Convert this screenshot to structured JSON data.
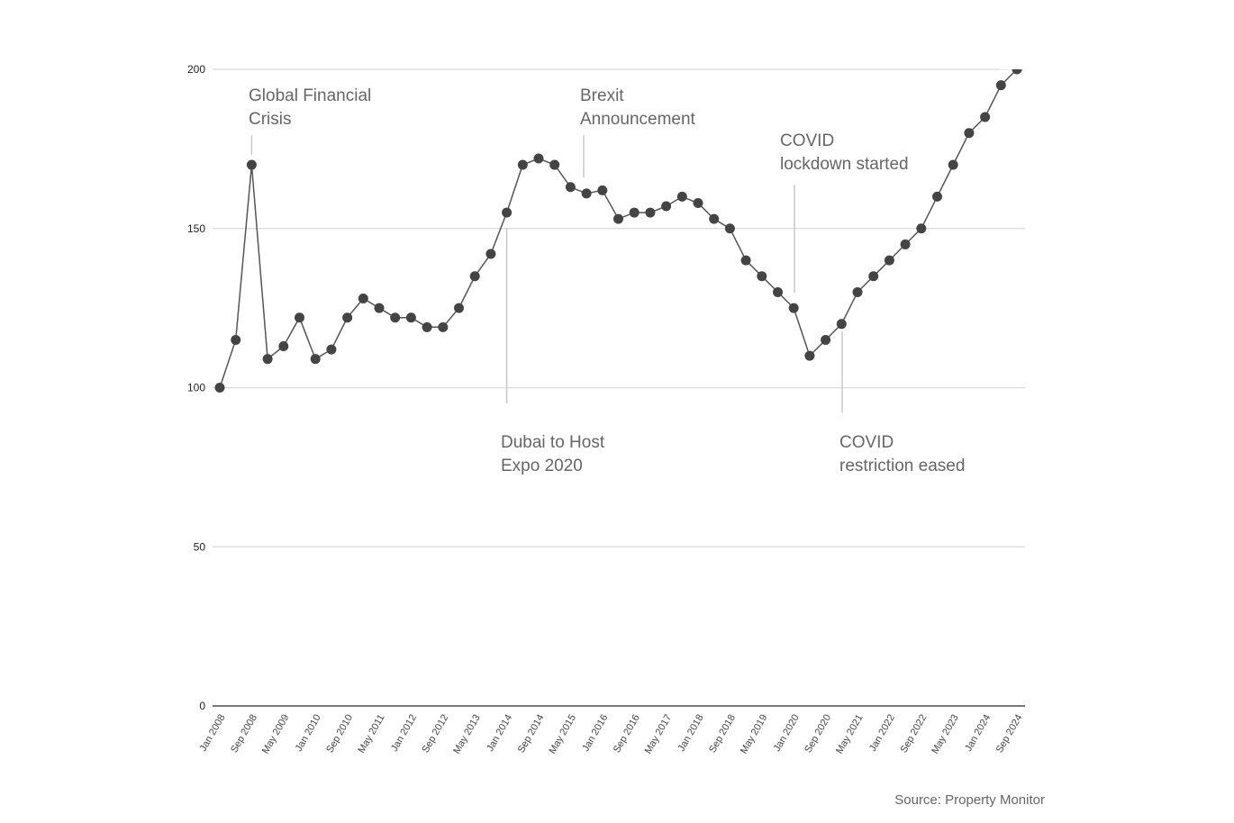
{
  "chart_data": {
    "type": "line",
    "title": "",
    "xlabel": "",
    "ylabel": "",
    "ylim": [
      0,
      200
    ],
    "yticks": [
      0,
      50,
      100,
      150,
      200
    ],
    "grid": true,
    "legend": null,
    "x": [
      "Jan 2008",
      "May 2008",
      "Sep 2008",
      "Jan 2009",
      "May 2009",
      "Sep 2009",
      "Jan 2010",
      "May 2010",
      "Sep 2010",
      "Jan 2011",
      "May 2011",
      "Sep 2011",
      "Jan 2012",
      "May 2012",
      "Sep 2012",
      "Jan 2013",
      "May 2013",
      "Sep 2013",
      "Jan 2014",
      "May 2014",
      "Sep 2014",
      "Jan 2015",
      "May 2015",
      "Sep 2015",
      "Jan 2016",
      "May 2016",
      "Sep 2016",
      "Jan 2017",
      "May 2017",
      "Sep 2017",
      "Jan 2018",
      "May 2018",
      "Sep 2018",
      "Jan 2019",
      "May 2019",
      "Sep 2019",
      "Jan 2020",
      "May 2020",
      "Sep 2020",
      "Jan 2021",
      "May 2021",
      "Sep 2021",
      "Jan 2022",
      "May 2022",
      "Sep 2022",
      "Jan 2023",
      "May 2023",
      "Sep 2023",
      "Jan 2024",
      "May 2024",
      "Sep 2024"
    ],
    "xtick_labels": [
      "Jan 2008",
      "Sep 2008",
      "May 2009",
      "Jan 2010",
      "Sep 2010",
      "May 2011",
      "Jan 2012",
      "Sep 2012",
      "May 2013",
      "Jan 2014",
      "Sep 2014",
      "May 2015",
      "Jan 2016",
      "Sep 2016",
      "May 2017",
      "Jan 2018",
      "Sep 2018",
      "May 2019",
      "Jan 2020",
      "Sep 2020",
      "May 2021",
      "Jan 2022",
      "Sep 2022",
      "May 2023",
      "Jan 2024",
      "Sep 2024"
    ],
    "series": [
      {
        "name": "Index",
        "color": "#444444",
        "values": [
          100,
          115,
          170,
          109,
          113,
          122,
          109,
          112,
          122,
          128,
          125,
          122,
          122,
          119,
          119,
          125,
          135,
          142,
          155,
          170,
          172,
          170,
          163,
          161,
          162,
          153,
          155,
          155,
          157,
          160,
          158,
          153,
          150,
          140,
          135,
          130,
          125,
          110,
          115,
          120,
          130,
          135,
          140,
          145,
          150,
          160,
          170,
          180,
          185,
          195,
          200
        ]
      }
    ],
    "annotations": [
      {
        "lines": [
          "Global Financial",
          "Crisis"
        ],
        "x_index": 2,
        "position": "above"
      },
      {
        "lines": [
          "Dubai to Host",
          "Expo 2020"
        ],
        "x_index": 18,
        "position": "below"
      },
      {
        "lines": [
          "Brexit",
          "Announcement"
        ],
        "x_index": 23,
        "position": "above"
      },
      {
        "lines": [
          "COVID",
          "lockdown started"
        ],
        "x_index": 36,
        "position": "above"
      },
      {
        "lines": [
          "COVID",
          "restriction eased"
        ],
        "x_index": 39,
        "position": "below"
      }
    ]
  },
  "source": "Source: Property Monitor"
}
